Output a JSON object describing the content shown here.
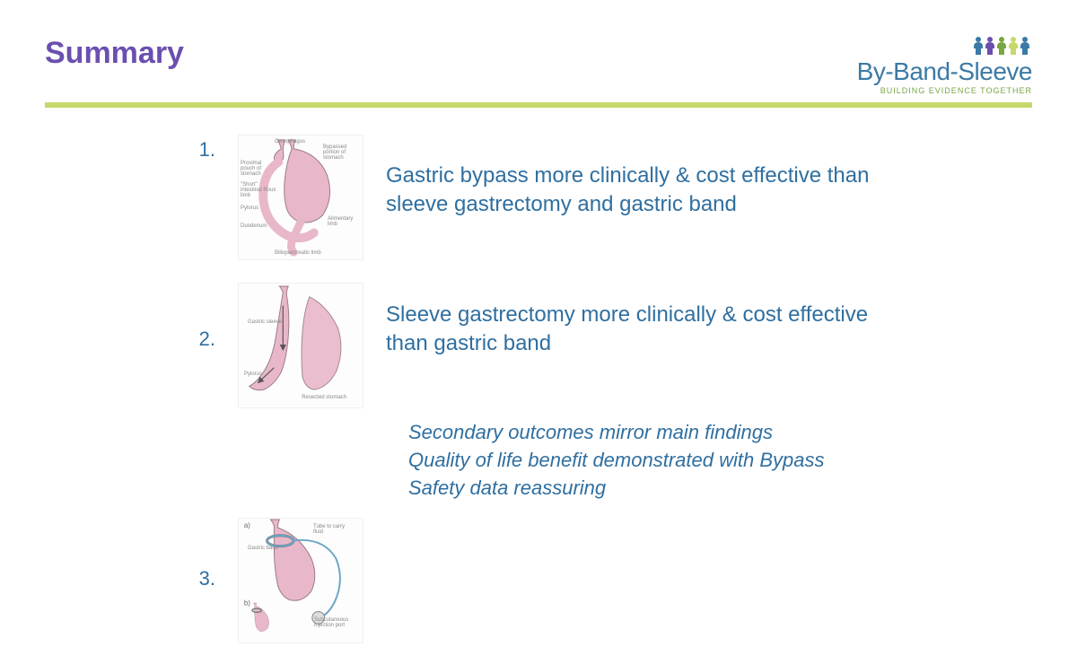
{
  "colors": {
    "title": "#6b4fb0",
    "divider": "#c5d96a",
    "logo_text": "#3b7aa5",
    "logo_tagline": "#7aa543",
    "body_text": "#2f6fa0",
    "number": "#2f6fa0",
    "diagram_fill": "#e8b8ca",
    "diagram_stroke": "#9a7a8a",
    "band_stroke": "#6ba5c5"
  },
  "slide": {
    "title": "Summary",
    "logo": {
      "text": "By-Band-Sleeve",
      "tagline": "BUILDING EVIDENCE TOGETHER",
      "people_colors": [
        "#3b7aa5",
        "#6b4fb0",
        "#7aa543",
        "#c5d96a",
        "#3b7aa5"
      ]
    },
    "items": [
      {
        "num": "1.",
        "text": "Gastric bypass more clinically & cost effective than sleeve gastrectomy and gastric band",
        "diagram_labels": [
          "Oesophagus",
          "Bypassed portion of stomach",
          "Proximal pouch of stomach",
          "\"Short\" intestinal Roux limb",
          "Pylorus",
          "Duodenum",
          "Alimentary limb",
          "Biliopancreatic limb"
        ]
      },
      {
        "num": "2.",
        "text": "Sleeve gastrectomy more clinically & cost effective than gastric band",
        "diagram_labels": [
          "Gastric sleeve",
          "Pylorus",
          "Resected stomach"
        ]
      },
      {
        "num": "3.",
        "text": "",
        "diagram_labels": [
          "Tube to carry fluid",
          "Gastric band",
          "Subcutaneous injection port"
        ]
      }
    ],
    "secondary": [
      "Secondary outcomes mirror main findings",
      "Quality of life benefit demonstrated with Bypass",
      "Safety data reassuring"
    ]
  },
  "typography": {
    "title_fontsize": 34,
    "body_fontsize": 24,
    "secondary_fontsize": 22,
    "logo_fontsize": 28
  }
}
